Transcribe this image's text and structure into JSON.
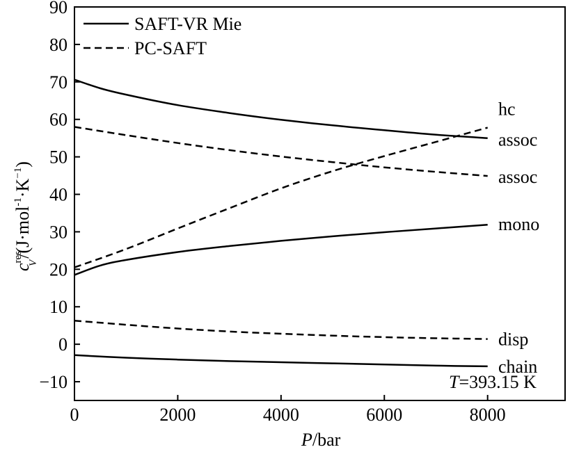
{
  "chart_data": {
    "type": "line",
    "xlabel": {
      "symbol": "P",
      "unit": "/bar"
    },
    "ylabel": {
      "symbol": "c",
      "sub": "V",
      "sup": "res",
      "unit": "/(J·mol",
      "unit_sup1": "-1",
      "unit_mid": "·K",
      "unit_sup2": "−1",
      "unit_end": ")"
    },
    "xlim": [
      0,
      9500
    ],
    "ylim": [
      -15,
      90
    ],
    "xticks": [
      0,
      2000,
      4000,
      6000,
      8000
    ],
    "yticks": [
      90,
      80,
      70,
      60,
      50,
      40,
      30,
      20,
      10,
      0,
      -10
    ],
    "ytick_labels": [
      "90",
      "80",
      "70",
      "60",
      "50",
      "40",
      "30",
      "20",
      "10",
      "0",
      "−10"
    ],
    "annotation": {
      "symbol": "T",
      "text": "=393.15 K"
    },
    "legend": {
      "position": "top-left",
      "entries": [
        {
          "label": "SAFT-VR Mie",
          "style": "solid"
        },
        {
          "label": "PC-SAFT",
          "style": "dashed"
        }
      ]
    },
    "series": [
      {
        "model": "SAFT-VR Mie",
        "label": "assoc",
        "style": "solid",
        "x": [
          0,
          500,
          1000,
          2000,
          3000,
          4000,
          5000,
          6000,
          7000,
          8000
        ],
        "y": [
          70.6,
          68.3,
          66.6,
          63.8,
          61.7,
          59.9,
          58.4,
          57.1,
          55.9,
          55.0
        ]
      },
      {
        "model": "SAFT-VR Mie",
        "label": "mono",
        "style": "solid",
        "x": [
          0,
          500,
          1000,
          2000,
          3000,
          4000,
          5000,
          6000,
          7000,
          8000
        ],
        "y": [
          18.5,
          21.0,
          22.5,
          24.6,
          26.2,
          27.6,
          28.8,
          29.9,
          30.9,
          31.9
        ]
      },
      {
        "model": "SAFT-VR Mie",
        "label": "chain",
        "style": "solid",
        "x": [
          0,
          1000,
          2000,
          3000,
          4000,
          5000,
          6000,
          7000,
          8000
        ],
        "y": [
          -2.9,
          -3.6,
          -4.1,
          -4.5,
          -4.8,
          -5.1,
          -5.4,
          -5.7,
          -5.9
        ]
      },
      {
        "model": "PC-SAFT",
        "label": "hc",
        "style": "dashed",
        "x": [
          0,
          1000,
          2000,
          3000,
          4000,
          5000,
          6000,
          7000,
          8000
        ],
        "y": [
          20.5,
          25.4,
          30.9,
          36.3,
          41.6,
          46.2,
          50.2,
          54.0,
          57.8
        ]
      },
      {
        "model": "PC-SAFT",
        "label": "assoc",
        "style": "dashed",
        "x": [
          0,
          1000,
          2000,
          3000,
          4000,
          5000,
          6000,
          7000,
          8000
        ],
        "y": [
          58.0,
          55.8,
          53.7,
          51.8,
          50.1,
          48.6,
          47.2,
          46.0,
          44.9
        ]
      },
      {
        "model": "PC-SAFT",
        "label": "disp",
        "style": "dashed",
        "x": [
          0,
          1000,
          2000,
          3000,
          4000,
          5000,
          6000,
          7000,
          8000
        ],
        "y": [
          6.3,
          5.2,
          4.2,
          3.4,
          2.8,
          2.3,
          1.9,
          1.6,
          1.4
        ]
      }
    ]
  }
}
